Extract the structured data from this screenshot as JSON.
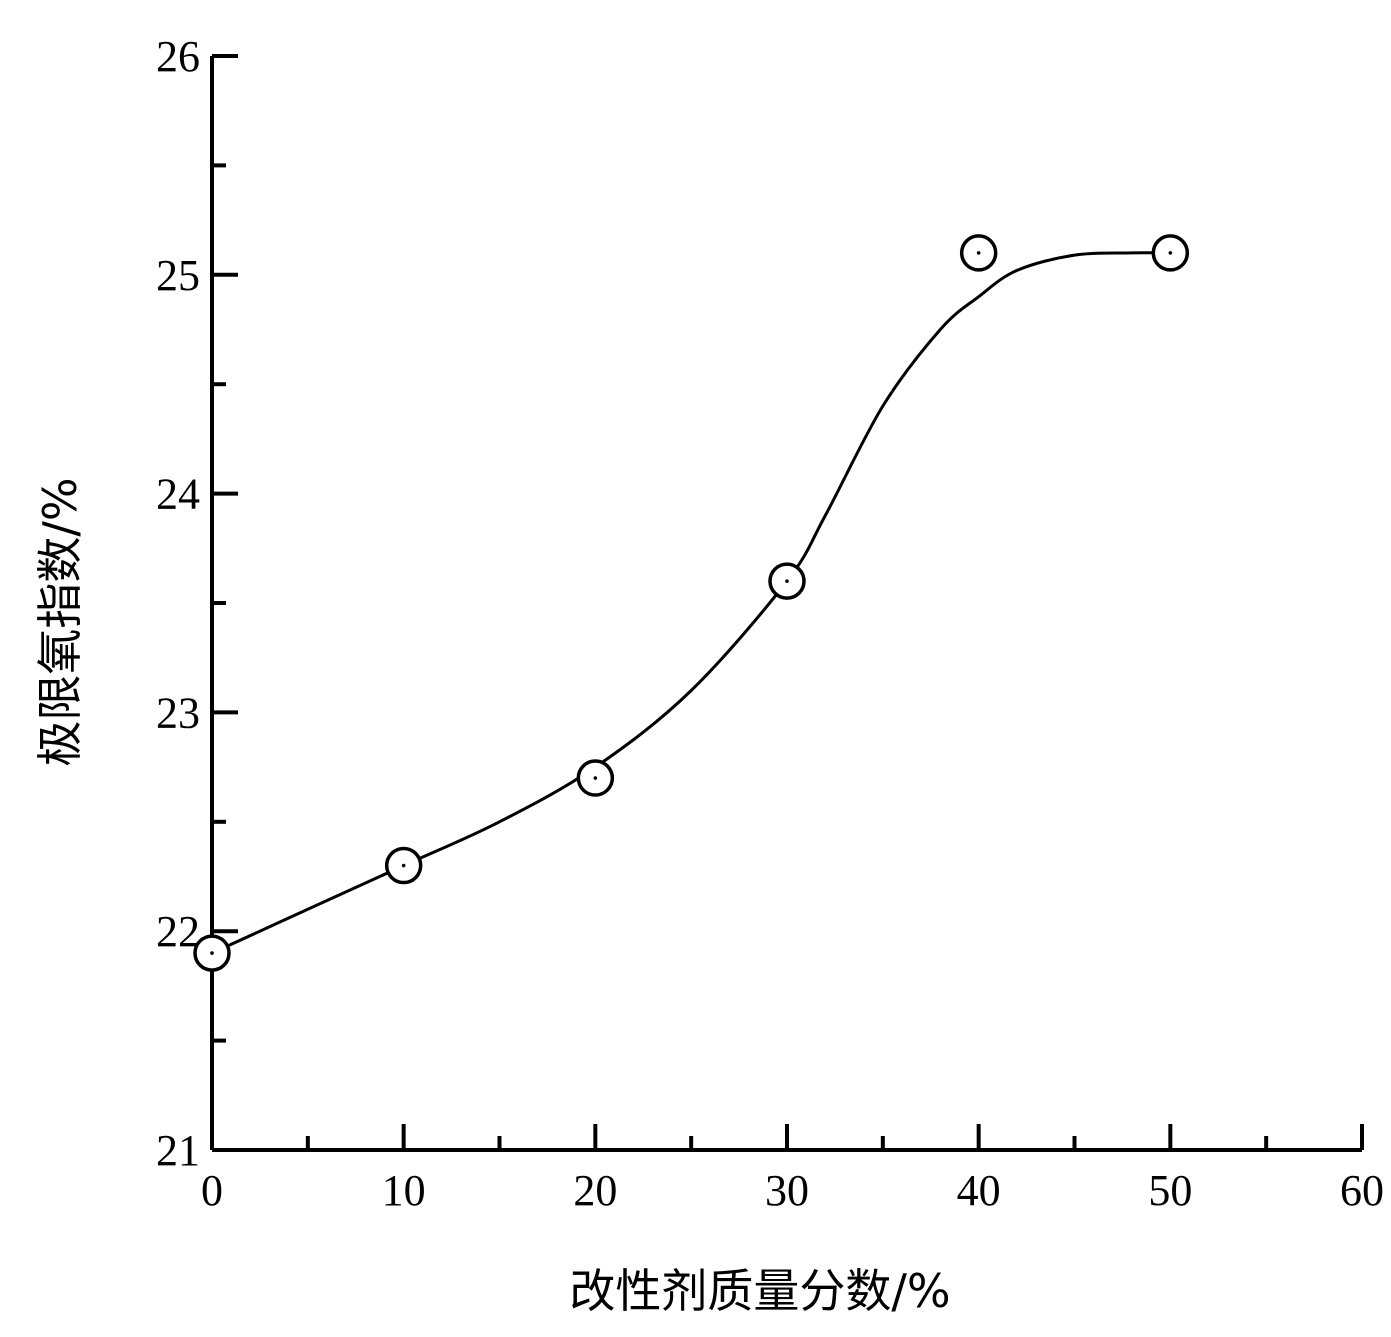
{
  "chart_data": {
    "type": "line",
    "title": "",
    "xlabel": "改性剂质量分数/%",
    "ylabel": "极限氧指数/%",
    "xlim": [
      0,
      60
    ],
    "ylim": [
      21,
      26
    ],
    "xticks": [
      0,
      10,
      20,
      30,
      40,
      50,
      60
    ],
    "yticks": [
      21,
      22,
      23,
      24,
      25,
      26
    ],
    "x_minor_step": 5,
    "y_minor_step": 0.5,
    "grid": false,
    "legend": "none",
    "series": [
      {
        "marker": "circle-with-center-dot",
        "line": "smooth-fit",
        "color": "#000000",
        "x": [
          0,
          10,
          20,
          30,
          40,
          50
        ],
        "y": [
          21.9,
          22.3,
          22.7,
          23.6,
          25.1,
          25.1
        ]
      }
    ],
    "fit_curve": {
      "x": [
        0,
        5,
        10,
        15,
        20,
        25,
        30,
        32,
        35,
        38,
        40,
        42,
        45,
        48,
        50
      ],
      "y": [
        21.9,
        22.1,
        22.3,
        22.5,
        22.75,
        23.1,
        23.6,
        23.9,
        24.4,
        24.75,
        24.9,
        25.02,
        25.09,
        25.1,
        25.1
      ]
    }
  }
}
